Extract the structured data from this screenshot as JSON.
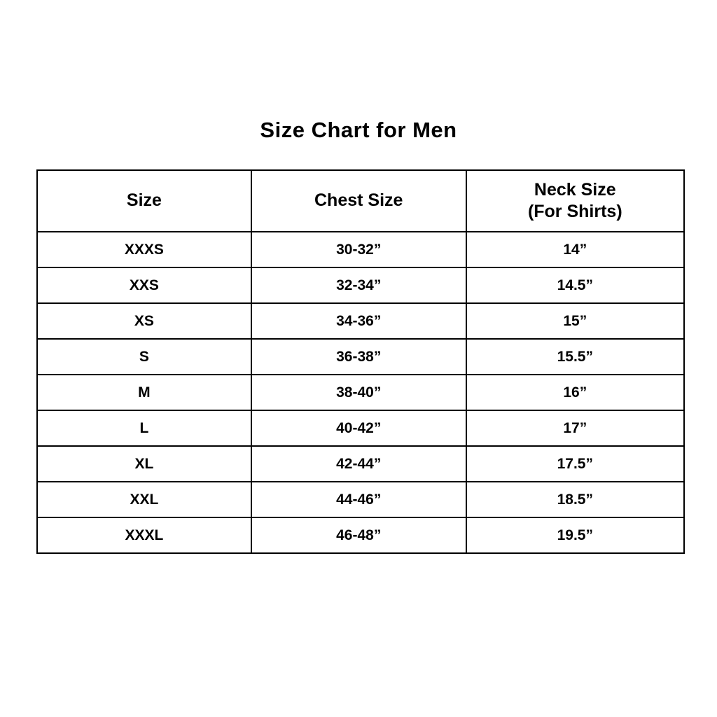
{
  "page": {
    "title": "Size Chart for Men"
  },
  "table": {
    "headers": {
      "size": "Size",
      "chest": "Chest Size",
      "neck_line1": "Neck Size",
      "neck_line2": "(For Shirts)"
    },
    "rows": [
      {
        "size": "XXXS",
        "chest": "30-32”",
        "neck": "14”"
      },
      {
        "size": "XXS",
        "chest": "32-34”",
        "neck": "14.5”"
      },
      {
        "size": "XS",
        "chest": "34-36”",
        "neck": "15”"
      },
      {
        "size": "S",
        "chest": "36-38”",
        "neck": "15.5”"
      },
      {
        "size": "M",
        "chest": "38-40”",
        "neck": "16”"
      },
      {
        "size": "L",
        "chest": "40-42”",
        "neck": "17”"
      },
      {
        "size": "XL",
        "chest": "42-44”",
        "neck": "17.5”"
      },
      {
        "size": "XXL",
        "chest": "44-46”",
        "neck": "18.5”"
      },
      {
        "size": "XXXL",
        "chest": "46-48”",
        "neck": "19.5”"
      }
    ]
  },
  "chart_data": {
    "type": "table",
    "title": "Size Chart for Men",
    "columns": [
      "Size",
      "Chest Size",
      "Neck Size (For Shirts)"
    ],
    "rows": [
      [
        "XXXS",
        "30-32”",
        "14”"
      ],
      [
        "XXS",
        "32-34”",
        "14.5”"
      ],
      [
        "XS",
        "34-36”",
        "15”"
      ],
      [
        "S",
        "36-38”",
        "15.5”"
      ],
      [
        "M",
        "38-40”",
        "16”"
      ],
      [
        "L",
        "40-42”",
        "17”"
      ],
      [
        "XL",
        "42-44”",
        "17.5”"
      ],
      [
        "XXL",
        "44-46”",
        "18.5”"
      ],
      [
        "XXXL",
        "46-48”",
        "19.5”"
      ]
    ],
    "layout": {
      "text_color": "#000000",
      "border_color": "#000000",
      "background": "#ffffff",
      "grid": true
    }
  }
}
